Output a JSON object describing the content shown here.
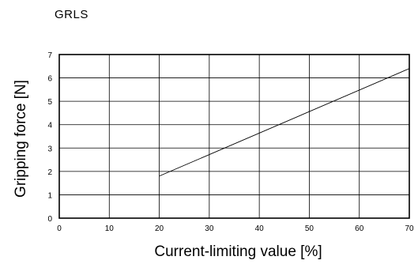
{
  "chart_data": {
    "type": "line",
    "title": "GRLS",
    "xlabel": "Current-limiting value [%]",
    "ylabel": "Gripping force [N]",
    "xlim": [
      0,
      70
    ],
    "ylim": [
      0,
      7
    ],
    "xticks": [
      0,
      10,
      20,
      30,
      40,
      50,
      60,
      70
    ],
    "yticks": [
      0,
      1,
      2,
      3,
      4,
      5,
      6,
      7
    ],
    "grid": true,
    "series": [
      {
        "x": [
          20,
          70
        ],
        "y": [
          1.8,
          6.4
        ]
      }
    ]
  }
}
